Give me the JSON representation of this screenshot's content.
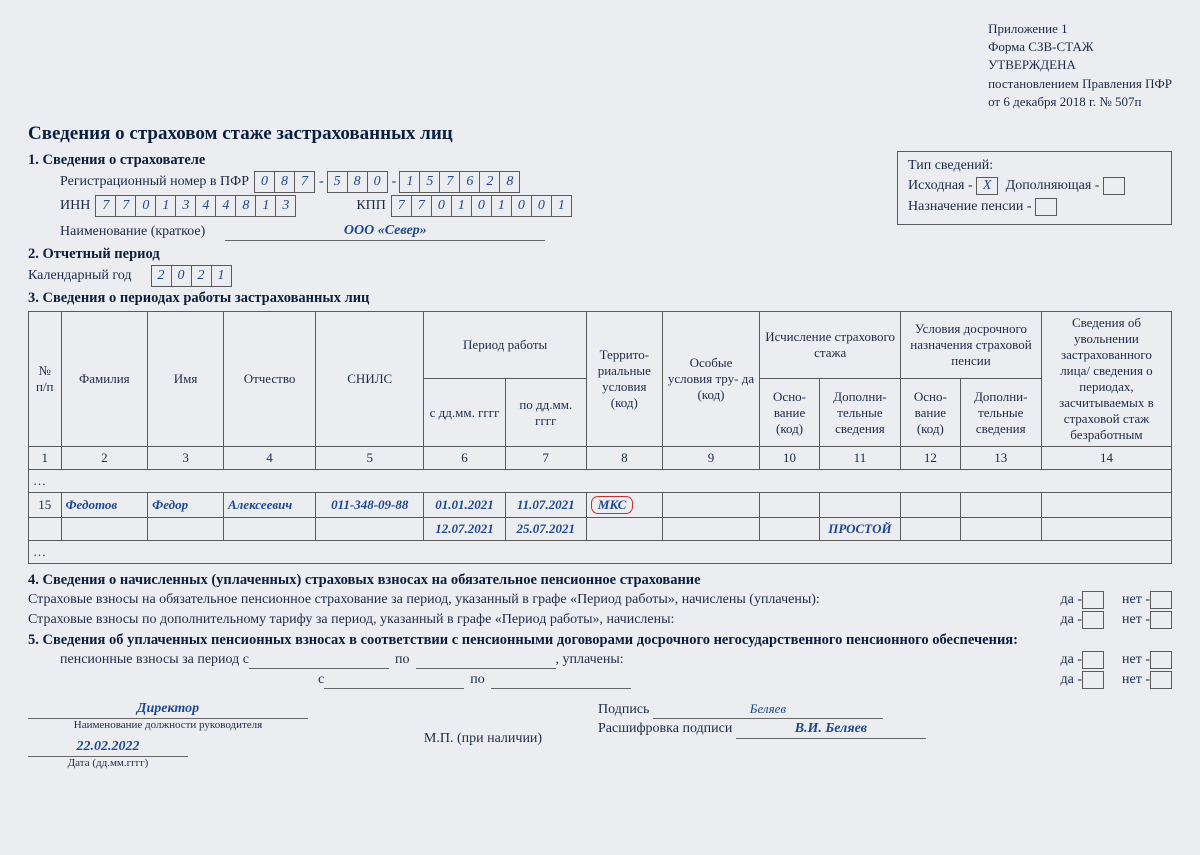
{
  "header_right": {
    "l1": "Приложение 1",
    "l2": "Форма СЗВ-СТАЖ",
    "l3": "УТВЕРЖДЕНА",
    "l4": "постановлением Правления ПФР",
    "l5": "от 6 декабря 2018 г. № 507п"
  },
  "title": "Сведения о страховом стаже застрахованных лиц",
  "s1_head": "1. Сведения о страхователе",
  "labels": {
    "regnum": "Регистрационный номер в ПФР",
    "inn": "ИНН",
    "kpp": "КПП",
    "shortname": "Наименование (краткое)",
    "typebox_title": "Тип сведений:",
    "t1": "Исходная -",
    "t2": "Дополняющая -",
    "t3": "Назначение пенсии -"
  },
  "reg": [
    "0",
    "8",
    "7",
    "5",
    "8",
    "0",
    "1",
    "5",
    "7",
    "6",
    "2",
    "8"
  ],
  "inn": [
    "7",
    "7",
    "0",
    "1",
    "3",
    "4",
    "4",
    "8",
    "1",
    "3"
  ],
  "kpp": [
    "7",
    "7",
    "0",
    "1",
    "0",
    "1",
    "0",
    "0",
    "1"
  ],
  "shortname_val": "ООО «Север»",
  "check_mark": "X",
  "s2_head": "2. Отчетный период",
  "year_label": "Календарный год",
  "year": [
    "2",
    "0",
    "2",
    "1"
  ],
  "s3_head": "3. Сведения о периодах работы застрахованных лиц",
  "cols": {
    "n": "№\nп/п",
    "fam": "Фамилия",
    "im": "Имя",
    "ot": "Отчество",
    "snils": "СНИЛС",
    "pr": "Период работы",
    "d1": "с дд.мм.\nгггг",
    "d2": "по дд.мм.\nгггг",
    "terr": "Террито-\nриальные\nусловия\n(код)",
    "usl": "Особые\nусловия тру-\nда (код)",
    "isch": "Исчисление\nстрахового\nстажа",
    "osn": "Осно-\nвание\n(код)",
    "dop": "Дополни-\nтельные\nсведения",
    "dosr": "Условия\nдосрочного\nназначения\nстраховой пенсии",
    "uvol": "Сведения\nоб увольнении\nзастрахованного\nлица/\nсведения\nо периодах,\nзасчитываемых\nв страховой\nстаж\nбезработным"
  },
  "colnums": [
    "1",
    "2",
    "3",
    "4",
    "5",
    "6",
    "7",
    "8",
    "9",
    "10",
    "11",
    "12",
    "13",
    "14"
  ],
  "rows": [
    {
      "n": "15",
      "fam": "Федотов",
      "im": "Федор",
      "ot": "Алексеевич",
      "snils": "011-348-09-88",
      "d1": "01.01.2021",
      "d2": "11.07.2021",
      "terr": "МКС",
      "usl": "",
      "osn1": "",
      "dop1": "",
      "osn2": "",
      "dop2": "",
      "uvol": ""
    },
    {
      "n": "",
      "fam": "",
      "im": "",
      "ot": "",
      "snils": "",
      "d1": "12.07.2021",
      "d2": "25.07.2021",
      "terr": "",
      "usl": "",
      "osn1": "",
      "dop1": "ПРОСТОЙ",
      "osn2": "",
      "dop2": "",
      "uvol": ""
    }
  ],
  "ell": "…",
  "s4_head": "4. Сведения о начисленных (уплаченных) страховых взносах на обязательное пенсионное страхование",
  "s4_l1": "Страховые взносы на обязательное пенсионное страхование за период, указанный в графе «Период работы», начислены (уплачены):",
  "s4_l2": "Страховые взносы по дополнительному тарифу за период, указанный в графе «Период работы», начислены:",
  "s5_head": "5. Сведения об уплаченных пенсионных взносах в соответствии с пенсионными договорами досрочного негосударственного пенсионного обеспечения:",
  "s5_l1a": "пенсионные взносы за период с",
  "s5_po": "по",
  "s5_upl": ", уплачены:",
  "s5_s": "с",
  "da": "да -",
  "net": "нет -",
  "sig": {
    "dir": "Директор",
    "dolzh": "Наименование должности руководителя",
    "podpis": "Подпись",
    "rasshif": "Расшифровка подписи",
    "name": "В.И. Беляев",
    "cursive": "Беляев",
    "date": "22.02.2022",
    "datelbl": "Дата (дд.мм.гггг)",
    "mp": "М.П. (при наличии)"
  }
}
